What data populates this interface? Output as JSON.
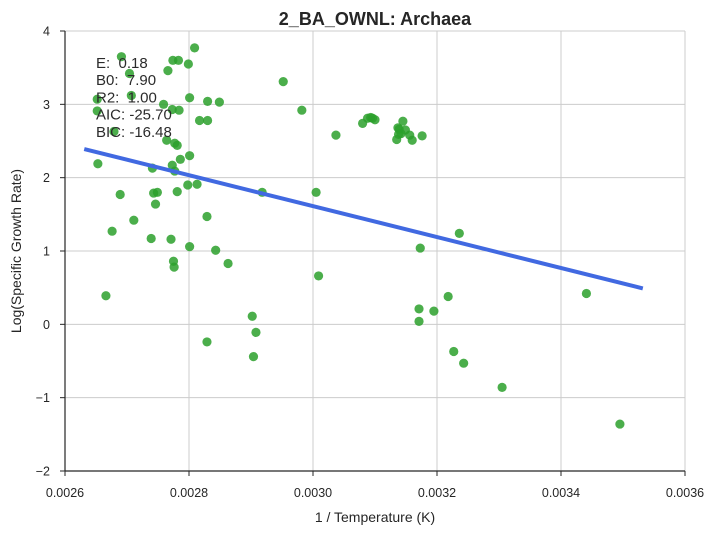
{
  "chart_data": {
    "type": "scatter",
    "title": "2_BA_OWNL: Archaea",
    "xlabel": "1 / Temperature (K)",
    "ylabel": "Log(Specific Growth Rate)",
    "xlim": [
      0.0026,
      0.0036
    ],
    "ylim": [
      -2,
      4
    ],
    "x_ticks": [
      0.0026,
      0.0028,
      0.003,
      0.0032,
      0.0034,
      0.0036
    ],
    "x_tick_labels": [
      "0.0026",
      "0.0028",
      "0.0030",
      "0.0032",
      "0.0034",
      "0.0036"
    ],
    "y_ticks": [
      -2,
      -1,
      0,
      1,
      2,
      3,
      4
    ],
    "y_tick_labels": [
      "−2",
      "−1",
      "0",
      "1",
      "2",
      "3",
      "4"
    ],
    "grid": true,
    "colors": {
      "points": "#2ca02c",
      "fit_line": "#4169e1",
      "grid": "#cccccc",
      "axis": "#262626"
    },
    "points": [
      {
        "x": 0.002652,
        "y": 3.07
      },
      {
        "x": 0.002652,
        "y": 2.91
      },
      {
        "x": 0.002653,
        "y": 2.19
      },
      {
        "x": 0.002666,
        "y": 0.39
      },
      {
        "x": 0.002676,
        "y": 1.27
      },
      {
        "x": 0.002679,
        "y": 2.63
      },
      {
        "x": 0.002689,
        "y": 1.77
      },
      {
        "x": 0.002691,
        "y": 3.65
      },
      {
        "x": 0.002704,
        "y": 3.42
      },
      {
        "x": 0.002707,
        "y": 3.12
      },
      {
        "x": 0.002711,
        "y": 1.42
      },
      {
        "x": 0.002739,
        "y": 1.17
      },
      {
        "x": 0.002741,
        "y": 2.13
      },
      {
        "x": 0.002743,
        "y": 1.79
      },
      {
        "x": 0.002746,
        "y": 1.64
      },
      {
        "x": 0.002749,
        "y": 1.8
      },
      {
        "x": 0.002759,
        "y": 3.0
      },
      {
        "x": 0.002764,
        "y": 2.51
      },
      {
        "x": 0.002766,
        "y": 3.46
      },
      {
        "x": 0.002771,
        "y": 1.16
      },
      {
        "x": 0.002773,
        "y": 2.93
      },
      {
        "x": 0.002773,
        "y": 2.17
      },
      {
        "x": 0.002774,
        "y": 3.6
      },
      {
        "x": 0.002775,
        "y": 0.86
      },
      {
        "x": 0.002776,
        "y": 0.78
      },
      {
        "x": 0.002777,
        "y": 2.09
      },
      {
        "x": 0.002777,
        "y": 2.47
      },
      {
        "x": 0.002781,
        "y": 2.44
      },
      {
        "x": 0.002781,
        "y": 1.81
      },
      {
        "x": 0.002783,
        "y": 3.6
      },
      {
        "x": 0.002784,
        "y": 2.92
      },
      {
        "x": 0.002786,
        "y": 2.25
      },
      {
        "x": 0.002798,
        "y": 1.9
      },
      {
        "x": 0.002799,
        "y": 3.55
      },
      {
        "x": 0.002801,
        "y": 1.06
      },
      {
        "x": 0.002801,
        "y": 3.09
      },
      {
        "x": 0.002801,
        "y": 2.3
      },
      {
        "x": 0.002809,
        "y": 3.77
      },
      {
        "x": 0.002813,
        "y": 1.91
      },
      {
        "x": 0.002817,
        "y": 2.78
      },
      {
        "x": 0.002829,
        "y": -0.24
      },
      {
        "x": 0.002829,
        "y": 1.47
      },
      {
        "x": 0.00283,
        "y": 2.78
      },
      {
        "x": 0.00283,
        "y": 3.04
      },
      {
        "x": 0.002843,
        "y": 1.01
      },
      {
        "x": 0.002849,
        "y": 3.03
      },
      {
        "x": 0.002863,
        "y": 0.83
      },
      {
        "x": 0.002902,
        "y": 0.11
      },
      {
        "x": 0.002904,
        "y": -0.44
      },
      {
        "x": 0.002908,
        "y": -0.11
      },
      {
        "x": 0.002918,
        "y": 1.8
      },
      {
        "x": 0.002952,
        "y": 3.31
      },
      {
        "x": 0.002982,
        "y": 2.92
      },
      {
        "x": 0.003005,
        "y": 1.8
      },
      {
        "x": 0.003009,
        "y": 0.66
      },
      {
        "x": 0.003037,
        "y": 2.58
      },
      {
        "x": 0.00308,
        "y": 2.74
      },
      {
        "x": 0.003088,
        "y": 2.81
      },
      {
        "x": 0.003093,
        "y": 2.82
      },
      {
        "x": 0.003096,
        "y": 2.81
      },
      {
        "x": 0.0031,
        "y": 2.79
      },
      {
        "x": 0.003135,
        "y": 2.52
      },
      {
        "x": 0.003137,
        "y": 2.68
      },
      {
        "x": 0.003138,
        "y": 2.59
      },
      {
        "x": 0.003139,
        "y": 2.66
      },
      {
        "x": 0.003142,
        "y": 2.6
      },
      {
        "x": 0.003145,
        "y": 2.77
      },
      {
        "x": 0.003149,
        "y": 2.65
      },
      {
        "x": 0.003156,
        "y": 2.58
      },
      {
        "x": 0.00316,
        "y": 2.51
      },
      {
        "x": 0.003171,
        "y": 0.21
      },
      {
        "x": 0.003171,
        "y": 0.04
      },
      {
        "x": 0.003173,
        "y": 1.04
      },
      {
        "x": 0.003176,
        "y": 2.57
      },
      {
        "x": 0.003195,
        "y": 0.18
      },
      {
        "x": 0.003218,
        "y": 0.38
      },
      {
        "x": 0.003227,
        "y": -0.37
      },
      {
        "x": 0.003236,
        "y": 1.24
      },
      {
        "x": 0.003243,
        "y": -0.53
      },
      {
        "x": 0.003305,
        "y": -0.86
      },
      {
        "x": 0.003441,
        "y": 0.42
      },
      {
        "x": 0.003495,
        "y": -1.36
      }
    ],
    "fit_line": {
      "x": [
        0.002631,
        0.003532
      ],
      "y": [
        2.39,
        0.49
      ]
    },
    "stats": [
      "E:  0.18",
      "B0:  7.90",
      "R2:  1.00",
      "AIC: -25.70",
      "BIC: -16.48"
    ],
    "stats_position": "top-left"
  }
}
